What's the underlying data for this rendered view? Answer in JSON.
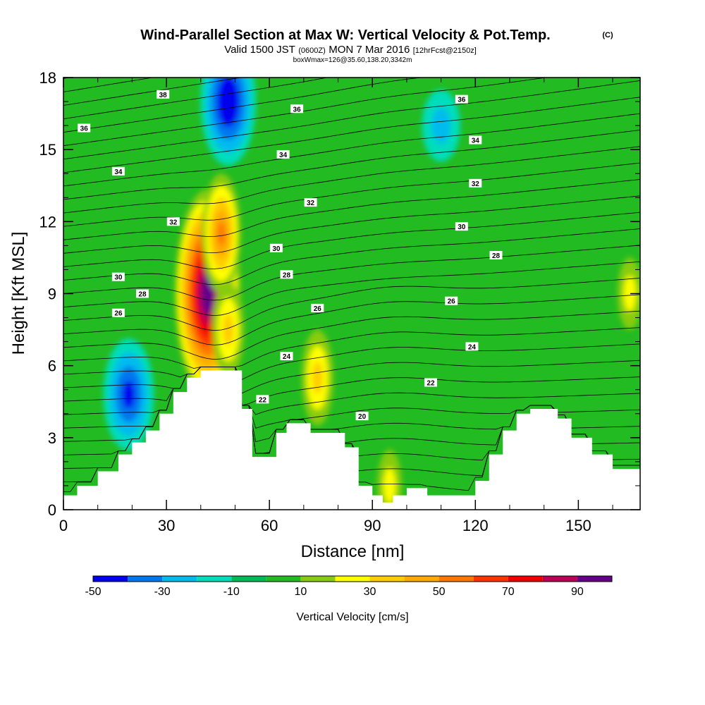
{
  "header": {
    "title": "Wind-Parallel Section at Max W: Vertical Velocity & Pot.Temp.",
    "copyright": "(C)",
    "valid_prefix": "Valid 1500 JST",
    "valid_utc": "(0600Z)",
    "valid_date": "MON 7 Mar 2016",
    "forecast": "[12hrFcst@2150z]",
    "box": "boxWmax=126@35.60,138.20,3342m"
  },
  "chart_data": {
    "type": "heatmap",
    "title": "Wind-Parallel Section at Max W: Vertical Velocity & Pot.Temp.",
    "xlabel": "Distance [nm]",
    "ylabel": "Height [Kft MSL]",
    "xlim": [
      0,
      168
    ],
    "ylim": [
      0,
      18
    ],
    "xticks": [
      "0",
      "30",
      "60",
      "90",
      "120",
      "150"
    ],
    "xtick_values": [
      0,
      30,
      60,
      90,
      120,
      150
    ],
    "yticks": [
      "0",
      "3",
      "6",
      "9",
      "12",
      "15",
      "18"
    ],
    "ytick_values": [
      0,
      3,
      6,
      9,
      12,
      15,
      18
    ],
    "grid": false,
    "colorbar": {
      "label": "Vertical Velocity [cm/s]",
      "levels": [
        -50,
        -40,
        -30,
        -20,
        -10,
        0,
        10,
        20,
        30,
        40,
        50,
        60,
        70,
        80,
        90,
        100
      ],
      "tick_labels": [
        "-50",
        "-30",
        "-10",
        "10",
        "30",
        "50",
        "70",
        "90"
      ],
      "tick_values": [
        -50,
        -30,
        -10,
        10,
        30,
        50,
        70,
        90
      ],
      "colors": [
        "#0000ee",
        "#0077ee",
        "#00bbee",
        "#00ddbb",
        "#00bb55",
        "#22bb22",
        "#88cc11",
        "#ffff00",
        "#ffcc00",
        "#ffaa00",
        "#ff7700",
        "#ff3300",
        "#ee0000",
        "#bb0055",
        "#660088"
      ]
    },
    "terrain_kft": [
      [
        0,
        0.6
      ],
      [
        4,
        1.0
      ],
      [
        10,
        1.6
      ],
      [
        16,
        2.3
      ],
      [
        20,
        2.8
      ],
      [
        24,
        3.3
      ],
      [
        28,
        4.0
      ],
      [
        32,
        4.9
      ],
      [
        36,
        5.5
      ],
      [
        40,
        5.8
      ],
      [
        51,
        5.8
      ],
      [
        52,
        4.2
      ],
      [
        55,
        2.2
      ],
      [
        60,
        2.2
      ],
      [
        62,
        3.2
      ],
      [
        65,
        3.6
      ],
      [
        71,
        3.6
      ],
      [
        72,
        3.2
      ],
      [
        80,
        3.2
      ],
      [
        82,
        2.6
      ],
      [
        86,
        1.0
      ],
      [
        90,
        0.6
      ],
      [
        93,
        0.3
      ],
      [
        96,
        0.6
      ],
      [
        100,
        0.9
      ],
      [
        104,
        0.9
      ],
      [
        106,
        0.6
      ],
      [
        116,
        0.6
      ],
      [
        120,
        1.2
      ],
      [
        124,
        2.3
      ],
      [
        128,
        3.3
      ],
      [
        132,
        4.0
      ],
      [
        136,
        4.2
      ],
      [
        140,
        4.2
      ],
      [
        144,
        3.8
      ],
      [
        148,
        3.0
      ],
      [
        154,
        2.3
      ],
      [
        160,
        1.7
      ],
      [
        168,
        1.7
      ]
    ],
    "velocity_features": [
      {
        "x": 42,
        "y": 9.0,
        "w_cms": 100
      },
      {
        "x": 46,
        "y": 11.5,
        "w_cms": 45
      },
      {
        "x": 48,
        "y": 7.5,
        "w_cms": 30
      },
      {
        "x": 74,
        "y": 5.5,
        "w_cms": 30
      },
      {
        "x": 48,
        "y": 17.0,
        "w_cms": -50
      },
      {
        "x": 19,
        "y": 4.8,
        "w_cms": -40
      },
      {
        "x": 110,
        "y": 16.0,
        "w_cms": -15
      },
      {
        "x": 165,
        "y": 9.0,
        "w_cms": 15
      },
      {
        "x": 95,
        "y": 1.0,
        "w_cms": 15
      }
    ],
    "theta_contours_K": [
      20,
      22,
      24,
      26,
      28,
      30,
      32,
      34,
      36,
      38
    ],
    "theta_labels": [
      {
        "text": "38",
        "x": 29,
        "y": 17.3
      },
      {
        "text": "36",
        "x": 68,
        "y": 16.7
      },
      {
        "text": "36",
        "x": 116,
        "y": 17.1
      },
      {
        "text": "36",
        "x": 6,
        "y": 15.9
      },
      {
        "text": "34",
        "x": 64,
        "y": 14.8
      },
      {
        "text": "34",
        "x": 16,
        "y": 14.1
      },
      {
        "text": "34",
        "x": 120,
        "y": 15.4
      },
      {
        "text": "32",
        "x": 72,
        "y": 12.8
      },
      {
        "text": "32",
        "x": 120,
        "y": 13.6
      },
      {
        "text": "32",
        "x": 32,
        "y": 12.0
      },
      {
        "text": "30",
        "x": 62,
        "y": 10.9
      },
      {
        "text": "30",
        "x": 116,
        "y": 11.8
      },
      {
        "text": "30",
        "x": 16,
        "y": 9.7
      },
      {
        "text": "28",
        "x": 65,
        "y": 9.8
      },
      {
        "text": "28",
        "x": 126,
        "y": 10.6
      },
      {
        "text": "28",
        "x": 23,
        "y": 9.0
      },
      {
        "text": "26",
        "x": 74,
        "y": 8.4
      },
      {
        "text": "26",
        "x": 113,
        "y": 8.7
      },
      {
        "text": "26",
        "x": 16,
        "y": 8.2
      },
      {
        "text": "24",
        "x": 65,
        "y": 6.4
      },
      {
        "text": "24",
        "x": 119,
        "y": 6.8
      },
      {
        "text": "22",
        "x": 58,
        "y": 4.6
      },
      {
        "text": "22",
        "x": 107,
        "y": 5.3
      },
      {
        "text": "20",
        "x": 87,
        "y": 3.9
      }
    ]
  }
}
